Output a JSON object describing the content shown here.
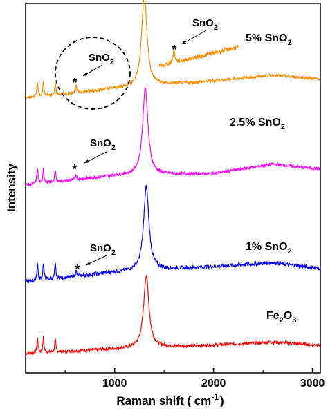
{
  "chart_data": {
    "type": "line",
    "xlabel": "Raman shift ( cm",
    "xlabel_sup": "-1",
    "xlabel_end": ")",
    "ylabel": "Intensity",
    "xlim": [
      100,
      3080
    ],
    "x_ticks": [
      1000,
      2000,
      3000
    ],
    "y_ticks_visible": false,
    "grid": false,
    "series": [
      {
        "color": "#ff0000",
        "label_main": "Fe",
        "label_sub1": "2",
        "label_mid": "O",
        "label_sub2": "3",
        "label_end": "",
        "peaks": [
          [
            220,
            38
          ],
          [
            280,
            40
          ],
          [
            400,
            32
          ],
          [
            1320,
            190
          ]
        ],
        "baseline": [
          [
            100,
            0
          ],
          [
            1000,
            12
          ],
          [
            2000,
            22
          ],
          [
            2600,
            30
          ],
          [
            3080,
            22
          ]
        ],
        "noise": 4
      },
      {
        "color": "#0000ff",
        "label_main": "1% SnO",
        "label_sub1": "2",
        "label_mid": "",
        "label_sub2": "",
        "label_end": "",
        "peaks": [
          [
            220,
            45
          ],
          [
            280,
            45
          ],
          [
            400,
            38
          ],
          [
            610,
            14
          ],
          [
            1320,
            220
          ]
        ],
        "baseline": [
          [
            100,
            0
          ],
          [
            1000,
            25
          ],
          [
            2000,
            40
          ],
          [
            2600,
            50
          ],
          [
            3080,
            35
          ]
        ],
        "noise": 5
      },
      {
        "color": "#ff00ff",
        "label_main": "2.5% SnO",
        "label_sub1": "2",
        "label_mid": "",
        "label_sub2": "",
        "label_end": "",
        "peaks": [
          [
            220,
            42
          ],
          [
            280,
            40
          ],
          [
            400,
            30
          ],
          [
            610,
            14
          ],
          [
            1310,
            230
          ]
        ],
        "baseline": [
          [
            100,
            0
          ],
          [
            1000,
            25
          ],
          [
            2000,
            30
          ],
          [
            2600,
            55
          ],
          [
            3080,
            42
          ]
        ],
        "noise": 4
      },
      {
        "color": "#ff8c00",
        "label_main": "5% SnO",
        "label_sub1": "2",
        "label_mid": "",
        "label_sub2": "",
        "label_end": "",
        "peaks": [
          [
            220,
            40
          ],
          [
            280,
            38
          ],
          [
            400,
            30
          ],
          [
            610,
            18
          ],
          [
            1300,
            240
          ]
        ],
        "baseline": [
          [
            100,
            0
          ],
          [
            1000,
            25
          ],
          [
            2000,
            45
          ],
          [
            2600,
            60
          ],
          [
            3080,
            50
          ]
        ],
        "noise": 4
      }
    ],
    "inset": {
      "color": "#ff8c00",
      "x_range": [
        1450,
        2250
      ],
      "peaks": [
        [
          1600,
          22
        ]
      ],
      "baseline": [
        [
          1450,
          0
        ],
        [
          2250,
          35
        ]
      ]
    },
    "annotations": [
      {
        "text": "SnO",
        "sub": "2",
        "marker": "*",
        "series": "5% SnO2 inset",
        "x": 1600
      },
      {
        "text": "SnO",
        "sub": "2",
        "marker": "*",
        "series": "5% SnO2",
        "x": 610,
        "circled": true
      },
      {
        "text": "SnO",
        "sub": "2",
        "marker": "*",
        "series": "2.5% SnO2",
        "x": 610
      },
      {
        "text": "SnO",
        "sub": "2",
        "marker": "*",
        "series": "1% SnO2",
        "x": 610
      }
    ]
  }
}
